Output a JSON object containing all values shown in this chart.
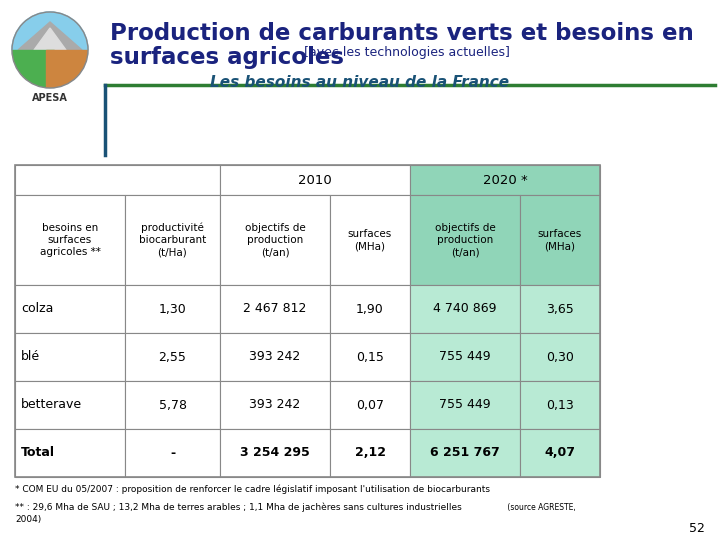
{
  "title_main": "Production de carburants verts et besoins en",
  "title_main2": "surfaces agricoles",
  "title_sub": " [avec les technologies actuelles]",
  "subtitle": "Les besoins au niveau de la France",
  "bg_color": "#ffffff",
  "title_color": "#1a237e",
  "subtitle_color": "#1a5276",
  "table_border_color": "#888888",
  "col_headers": [
    "besoins en\nsurfaces\nagricoles **",
    "productivité\nbiocarburant\n(t/Ha)",
    "objectifs de\nproduction\n(t/an)",
    "surfaces\n(MHa)",
    "objectifs de\nproduction\n(t/an)",
    "surfaces\n(MHa)"
  ],
  "year_headers": [
    "2010",
    "2020 *"
  ],
  "rows": [
    [
      "colza",
      "1,30",
      "2 467 812",
      "1,90",
      "4 740 869",
      "3,65"
    ],
    [
      "blé",
      "2,55",
      "393 242",
      "0,15",
      "755 449",
      "0,30"
    ],
    [
      "betterave",
      "5,78",
      "393 242",
      "0,07",
      "755 449",
      "0,13"
    ],
    [
      "Total",
      "-",
      "3 254 295",
      "2,12",
      "6 251 767",
      "4,07"
    ]
  ],
  "footnote1": "* COM EU du 05/2007 : proposition de renforcer le cadre législatif imposant l'utilisation de biocarburants",
  "footnote2": "** : 29,6 Mha de SAU ; 13,2 Mha de terres arables ; 1,1 Mha de jachères sans cultures industrielles",
  "footnote2b": " (source AGRESTE,",
  "footnote3": "2004)",
  "page_number": "52",
  "header_line_color": "#2e7d32",
  "accent_line_color": "#1a5276",
  "green_header": "#90d5b8",
  "green_data": "#b8ead4"
}
